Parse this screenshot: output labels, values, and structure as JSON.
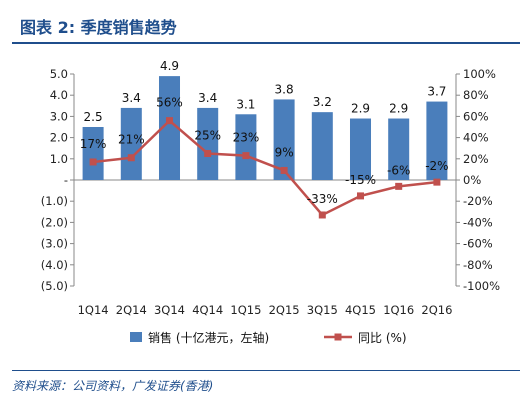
{
  "title": "图表 2: 季度销售趋势",
  "source": "资料来源：公司资料，广发证券(香港)",
  "chart_data": {
    "type": "bar",
    "categories": [
      "1Q14",
      "2Q14",
      "3Q14",
      "4Q14",
      "1Q15",
      "2Q15",
      "3Q15",
      "4Q15",
      "1Q16",
      "2Q16"
    ],
    "series": [
      {
        "name": "销售 (十亿港元，左轴)",
        "type": "bar",
        "axis": "left",
        "values": [
          2.5,
          3.4,
          4.9,
          3.4,
          3.1,
          3.8,
          3.2,
          2.9,
          2.9,
          3.7
        ],
        "labels": [
          "2.5",
          "3.4",
          "4.9",
          "3.4",
          "3.1",
          "3.8",
          "3.2",
          "2.9",
          "2.9",
          "3.7"
        ]
      },
      {
        "name": "同比 (%)",
        "type": "line",
        "axis": "right",
        "values": [
          17,
          21,
          56,
          25,
          23,
          9,
          -33,
          -15,
          -6,
          -2
        ],
        "labels": [
          "17%",
          "21%",
          "56%",
          "25%",
          "23%",
          "9%",
          "-33%",
          "-15%",
          "-6%",
          "-2%"
        ]
      }
    ],
    "y_left": {
      "ylim": [
        -5,
        5
      ],
      "ticks": [
        5,
        4,
        3,
        2,
        1,
        0,
        -1,
        -2,
        -3,
        -4,
        -5
      ],
      "tick_labels": [
        "5.0",
        "4.0",
        "3.0",
        "2.0",
        "1.0",
        "-",
        "(1.0)",
        "(2.0)",
        "(3.0)",
        "(4.0)",
        "(5.0)"
      ]
    },
    "y_right": {
      "ylim": [
        -100,
        100
      ],
      "ticks": [
        100,
        80,
        60,
        40,
        20,
        0,
        -20,
        -40,
        -60,
        -80,
        -100
      ],
      "tick_labels": [
        "100%",
        "80%",
        "60%",
        "40%",
        "20%",
        "0%",
        "-20%",
        "-40%",
        "-60%",
        "-80%",
        "-100%"
      ]
    },
    "grid": false,
    "legend_position": "bottom",
    "colors": {
      "bar": "#4A7EBB",
      "line": "#C0504D",
      "title": "#1F4E8C"
    }
  }
}
